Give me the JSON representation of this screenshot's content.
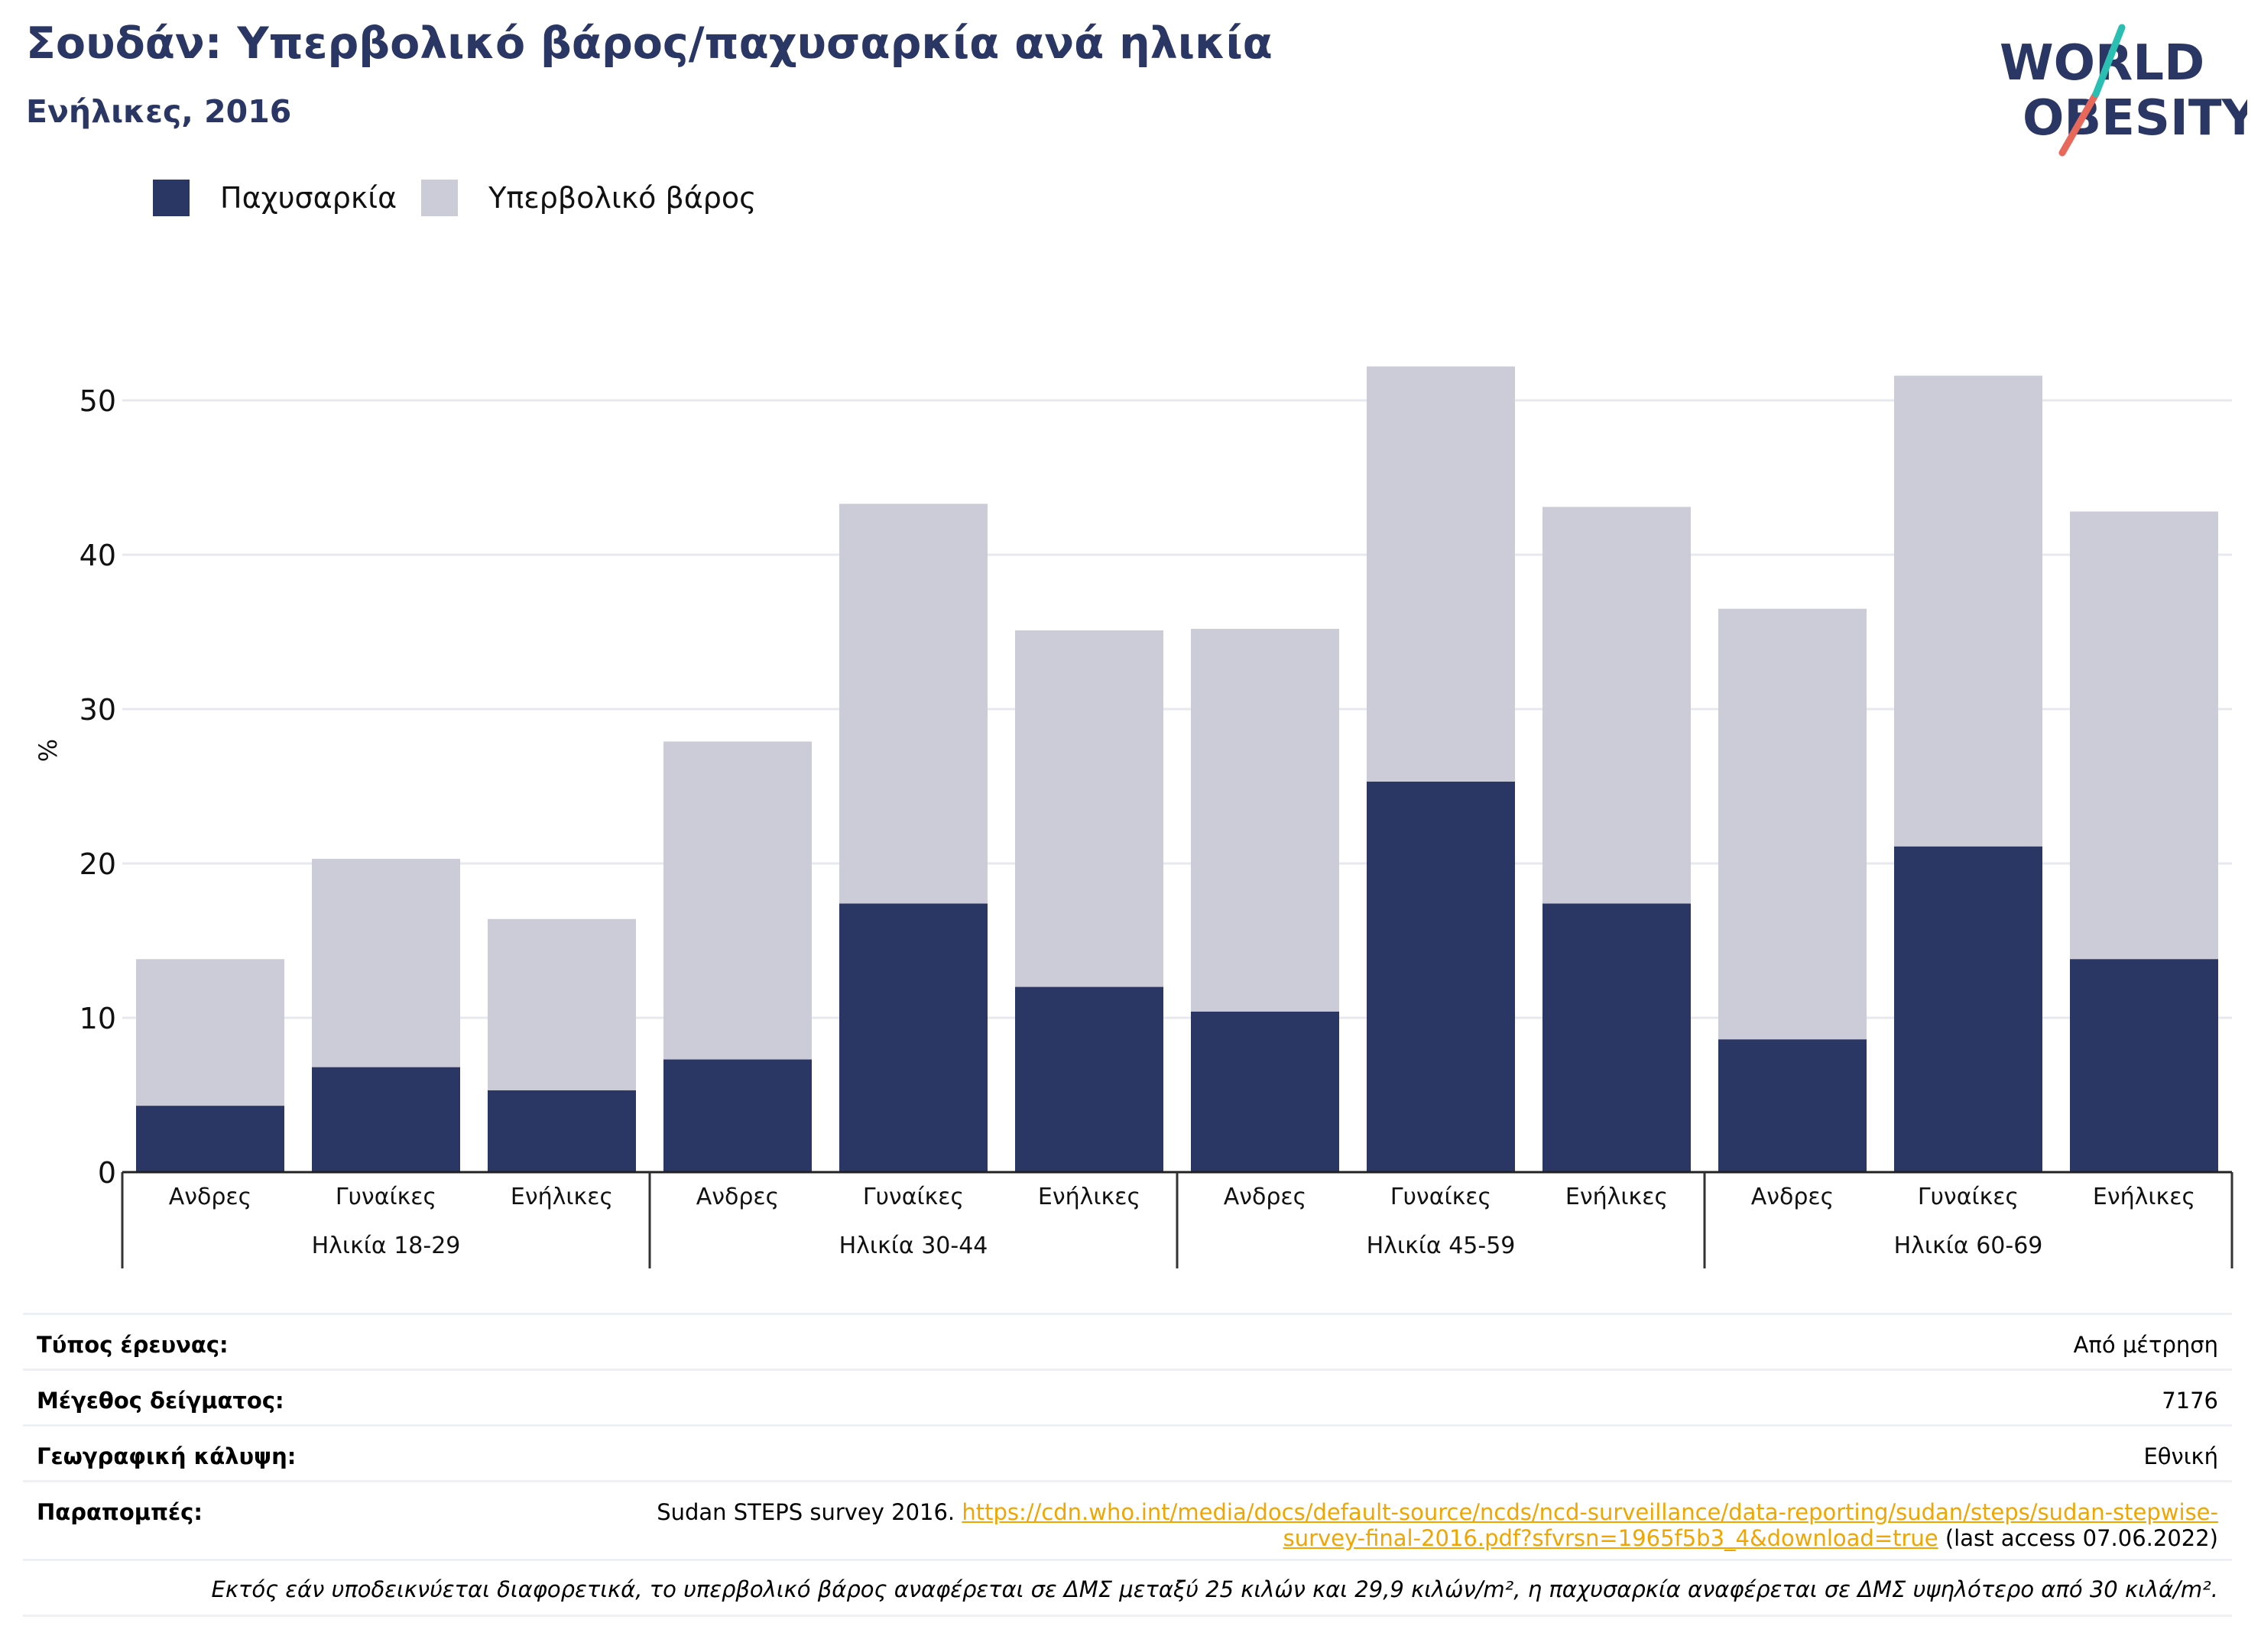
{
  "header": {
    "title": "Σουδάν: Υπερβολικό βάρος/παχυσαρκία ανά ηλικία",
    "subtitle": "Ενήλικες, 2016"
  },
  "logo": {
    "line1": "WORLD",
    "line2": "OBESITY"
  },
  "colors": {
    "obesity": "#2a3664",
    "overweight": "#cbccd7",
    "grid": "#e8e9ee",
    "link": "#f0a500",
    "logo_slash_red": "#e8685c",
    "logo_slash_teal": "#2bbfb3"
  },
  "legend": [
    {
      "label": "Παχυσαρκία",
      "color": "#2a3664"
    },
    {
      "label": "Υπερβολικό βάρος",
      "color": "#cbccd7"
    }
  ],
  "chart_data": {
    "type": "bar",
    "stacked": true,
    "ylabel": "%",
    "ylim": [
      0,
      57
    ],
    "yticks": [
      0,
      10,
      20,
      30,
      40,
      50
    ],
    "grid": true,
    "legend_position": "top-left",
    "groups": [
      "Ηλικία 18-29",
      "Ηλικία 30-44",
      "Ηλικία 45-59",
      "Ηλικία 60-69"
    ],
    "categories": [
      "Ανδρες",
      "Γυναίκες",
      "Ενήλικες",
      "Ανδρες",
      "Γυναίκες",
      "Ενήλικες",
      "Ανδρες",
      "Γυναίκες",
      "Ενήλικες",
      "Ανδρες",
      "Γυναίκες",
      "Ενήλικες"
    ],
    "series": [
      {
        "name": "Παχυσαρκία",
        "values": [
          4.3,
          6.8,
          5.3,
          7.3,
          17.4,
          12.0,
          10.4,
          25.3,
          17.4,
          8.6,
          21.1,
          13.8
        ]
      },
      {
        "name": "Υπερβολικό βάρος",
        "values": [
          9.5,
          13.5,
          11.1,
          20.6,
          25.9,
          23.1,
          24.8,
          26.9,
          25.7,
          27.9,
          30.5,
          29.0
        ]
      }
    ]
  },
  "info": {
    "survey_type_label": "Τύπος έρευνας:",
    "survey_type_value": "Από μέτρηση",
    "sample_size_label": "Μέγεθος δείγματος:",
    "sample_size_value": "7176",
    "coverage_label": "Γεωγραφική κάλυψη:",
    "coverage_value": "Εθνική",
    "references_label": "Παραπομπές:",
    "reference_text": "Sudan STEPS survey 2016.",
    "reference_link_line1": "https://cdn.who.int/media/docs/default-source/ncds/ncd-surveillance/data-reporting/sudan/steps/sudan-stepwise-",
    "reference_link_line2": "survey-final-2016.pdf?sfvrsn=1965f5b3_4&download=true",
    "reference_access": "(last access 07.06.2022)",
    "note": "Εκτός εάν υποδεικνύεται διαφορετικά, το υπερβολικό βάρος αναφέρεται σε ΔΜΣ μεταξύ 25 κιλών και 29,9 κιλών/m², η παχυσαρκία αναφέρεται σε ΔΜΣ υψηλότερο από 30 κιλά/m²."
  }
}
